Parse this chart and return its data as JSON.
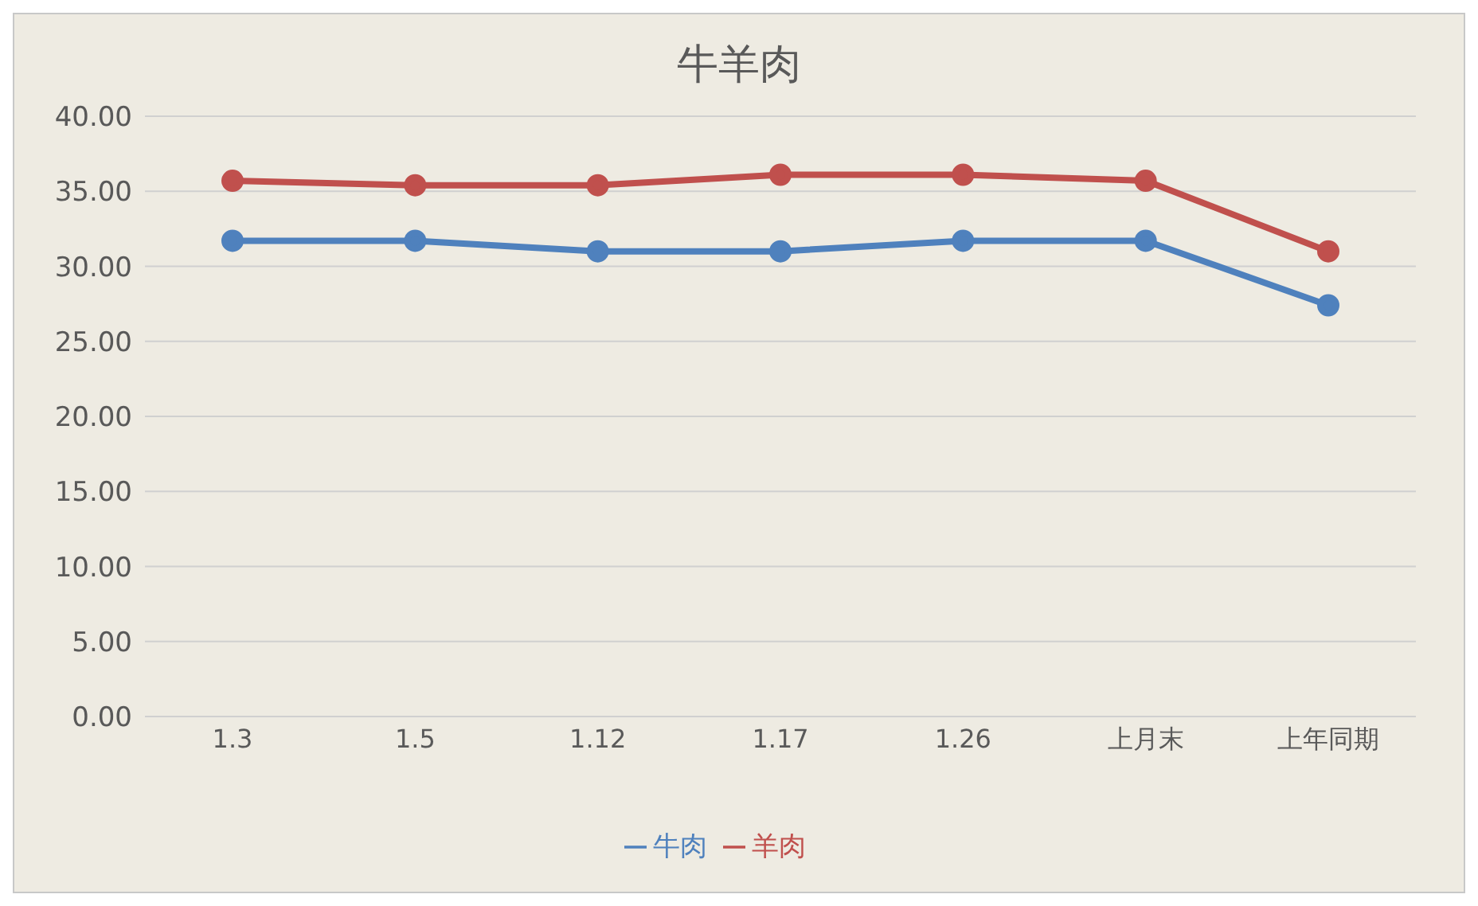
{
  "chart_data": {
    "type": "line",
    "title": "牛羊肉",
    "categories": [
      "1.3",
      "1.5",
      "1.12",
      "1.17",
      "1.26",
      "上月末",
      "上年同期"
    ],
    "series": [
      {
        "name": "牛肉",
        "color": "#4f81bd",
        "values": [
          31.7,
          31.7,
          31.0,
          31.0,
          31.7,
          31.7,
          27.4
        ]
      },
      {
        "name": "羊肉",
        "color": "#c0504d",
        "values": [
          35.7,
          35.4,
          35.4,
          36.1,
          36.1,
          35.7,
          31.0
        ]
      }
    ],
    "ylim": [
      0,
      40
    ],
    "yticks": [
      {
        "value": 0,
        "label": "0.00"
      },
      {
        "value": 5,
        "label": "5.00"
      },
      {
        "value": 10,
        "label": "10.00"
      },
      {
        "value": 15,
        "label": "15.00"
      },
      {
        "value": 20,
        "label": "20.00"
      },
      {
        "value": 25,
        "label": "25.00"
      },
      {
        "value": 30,
        "label": "30.00"
      },
      {
        "value": 35,
        "label": "35.00"
      },
      {
        "value": 40,
        "label": "40.00"
      }
    ],
    "grid": "y",
    "legend": "bottom",
    "marker": "circle",
    "line_style": "solid"
  }
}
